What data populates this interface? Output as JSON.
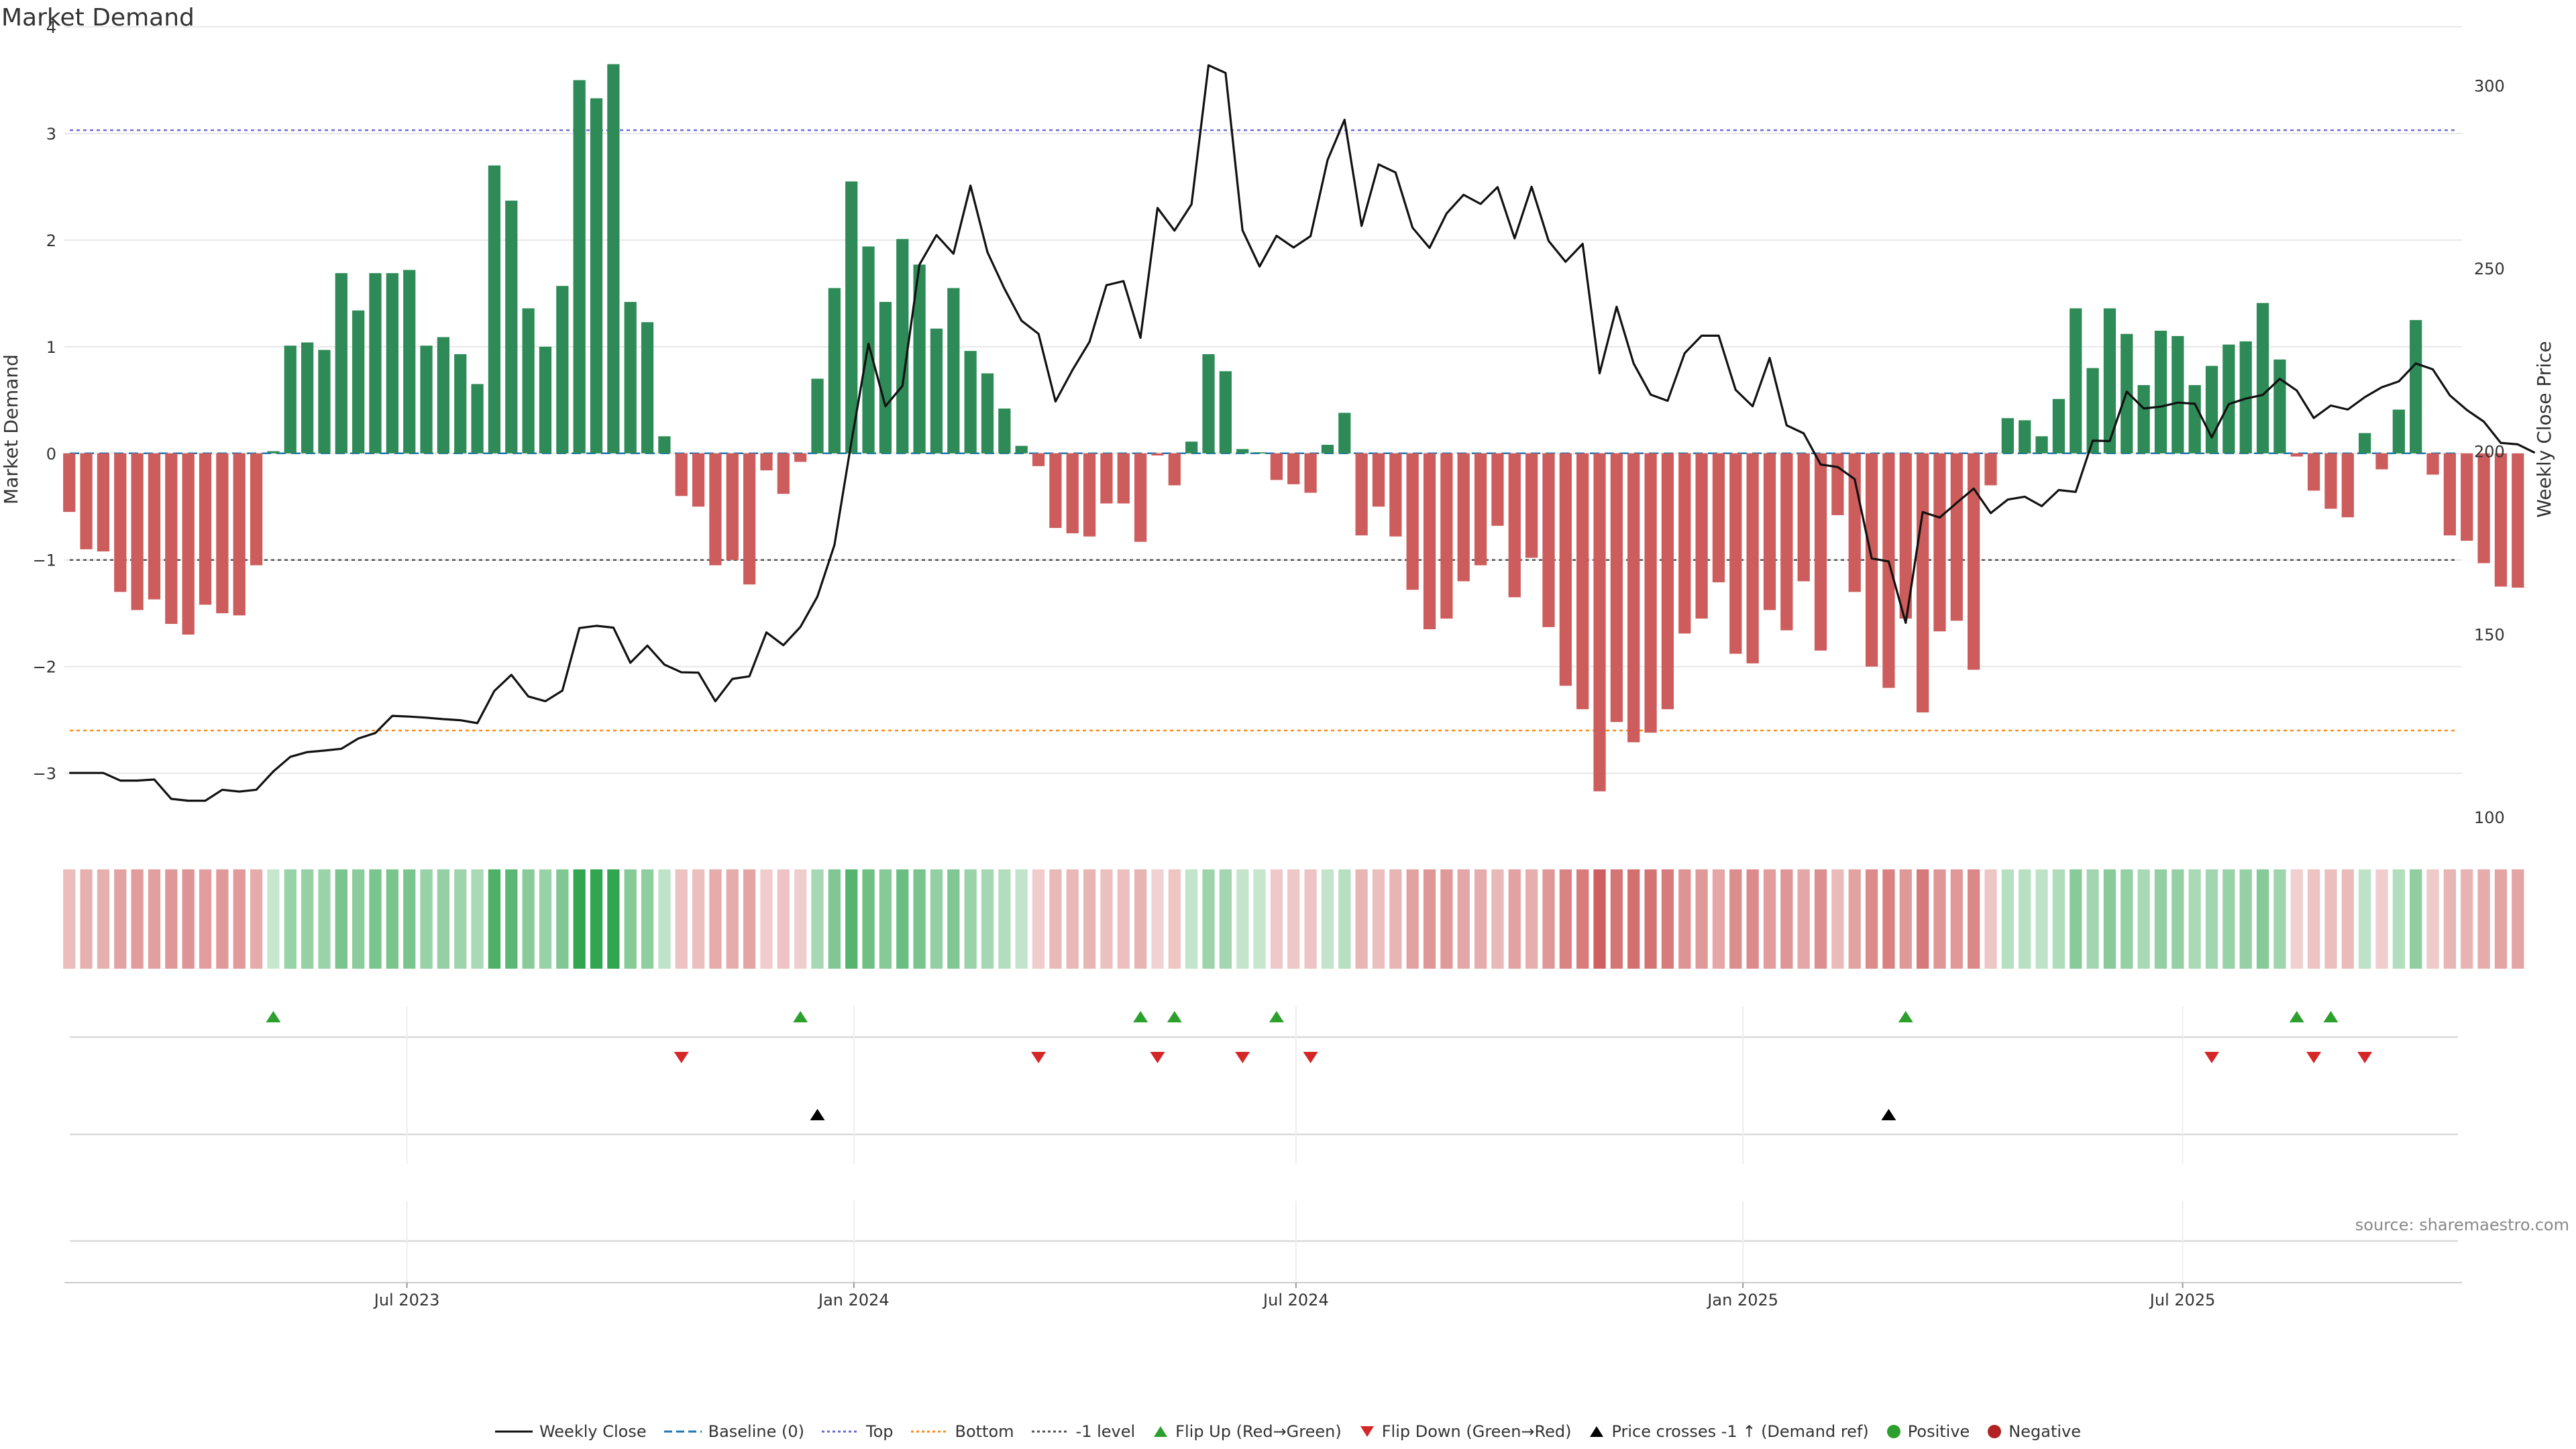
{
  "title": "Market Demand",
  "source": "source: sharemaestro.com",
  "colors": {
    "positive_bar": "#2e8b57",
    "negative_bar": "#cd5c5c",
    "price_line": "#111111",
    "baseline": "#1f77b4",
    "top_line": "#6b6bd6",
    "bottom_line": "#ff8c1a",
    "minus_one_line": "#555555",
    "flip_up": "#2ca02c",
    "flip_down": "#d62728",
    "price_cross": "#000000"
  },
  "legend": [
    {
      "key": "weekly_close",
      "label": "Weekly Close",
      "marker": "solid-line",
      "color": "#111111"
    },
    {
      "key": "baseline",
      "label": "Baseline (0)",
      "marker": "dashed-line",
      "color": "#1f77b4"
    },
    {
      "key": "top",
      "label": "Top",
      "marker": "dotted-line",
      "color": "#6b6bd6"
    },
    {
      "key": "bottom",
      "label": "Bottom",
      "marker": "dotted-line",
      "color": "#ff8c1a"
    },
    {
      "key": "minus_one",
      "label": "-1 level",
      "marker": "dotted-line",
      "color": "#555555"
    },
    {
      "key": "flip_up",
      "label": "Flip Up (Red→Green)",
      "marker": "triangle-up",
      "color": "#2ca02c"
    },
    {
      "key": "flip_down",
      "label": "Flip Down (Green→Red)",
      "marker": "triangle-down",
      "color": "#d62728"
    },
    {
      "key": "price_cross",
      "label": "Price crosses -1 ↑ (Demand ref)",
      "marker": "triangle-up",
      "color": "#000000"
    },
    {
      "key": "positive",
      "label": "Positive",
      "marker": "dot",
      "color": "#2ca02c"
    },
    {
      "key": "negative",
      "label": "Negative",
      "marker": "dot",
      "color": "#b22222"
    }
  ],
  "chart_data": {
    "type": "bar",
    "title": "Market Demand",
    "ylabel": "Market Demand",
    "y2label": "Weekly Close Price",
    "ylim": [
      -3.55,
      4
    ],
    "y2lim": [
      96,
      316
    ],
    "yticks": [
      4,
      3,
      2,
      1,
      0,
      -1,
      -2,
      -3
    ],
    "ytick_labels": [
      "4",
      "3",
      "2",
      "1",
      "0",
      "−1",
      "−2",
      "−3"
    ],
    "y2ticks": [
      300,
      250,
      200,
      150,
      100
    ],
    "y2tick_labels": [
      "300",
      "250",
      "200",
      "150",
      "100"
    ],
    "levels": {
      "top": 3.03,
      "bottom": -2.6,
      "minus_one": -1,
      "baseline": 0
    },
    "x_start": "2023-02-12",
    "x_step_days": 7,
    "x_range": [
      "2023-02-10",
      "2025-10-24"
    ],
    "x_ticks": [
      {
        "date": "2023-07-01",
        "label": "Jul 2023"
      },
      {
        "date": "2024-01-01",
        "label": "Jan 2024"
      },
      {
        "date": "2024-07-01",
        "label": "Jul 2024"
      },
      {
        "date": "2025-01-01",
        "label": "Jan 2025"
      },
      {
        "date": "2025-07-01",
        "label": "Jul 2025"
      }
    ],
    "demand": [
      -0.55,
      -0.9,
      -0.92,
      -1.3,
      -1.47,
      -1.37,
      -1.6,
      -1.7,
      -1.42,
      -1.5,
      -1.52,
      -1.05,
      0.02,
      1.01,
      1.04,
      0.97,
      1.69,
      1.34,
      1.69,
      1.69,
      1.72,
      1.01,
      1.09,
      0.93,
      0.65,
      2.7,
      2.37,
      1.36,
      1.0,
      1.57,
      3.5,
      3.33,
      3.65,
      1.42,
      1.23,
      0.16,
      -0.4,
      -0.5,
      -1.05,
      -1.0,
      -1.23,
      -0.16,
      -0.38,
      -0.08,
      0.7,
      1.55,
      2.55,
      1.94,
      1.42,
      2.01,
      1.77,
      1.17,
      1.55,
      0.96,
      0.75,
      0.42,
      0.07,
      -0.12,
      -0.7,
      -0.75,
      -0.78,
      -0.47,
      -0.47,
      -0.83,
      -0.02,
      -0.3,
      0.11,
      0.93,
      0.77,
      0.04,
      0.01,
      -0.25,
      -0.29,
      -0.37,
      0.08,
      0.38,
      -0.77,
      -0.5,
      -0.78,
      -1.28,
      -1.65,
      -1.55,
      -1.2,
      -1.05,
      -0.68,
      -1.35,
      -0.98,
      -1.63,
      -2.18,
      -2.4,
      -3.17,
      -2.52,
      -2.71,
      -2.62,
      -2.4,
      -1.69,
      -1.55,
      -1.21,
      -1.88,
      -1.97,
      -1.47,
      -1.66,
      -1.2,
      -1.85,
      -0.58,
      -1.3,
      -2.0,
      -2.2,
      -1.55,
      -2.43,
      -1.67,
      -1.57,
      -2.03,
      -0.3,
      0.33,
      0.31,
      0.16,
      0.51,
      1.36,
      0.8,
      1.36,
      1.12,
      0.64,
      1.15,
      1.1,
      0.64,
      0.82,
      1.02,
      1.05,
      1.41,
      0.88,
      -0.03,
      -0.35,
      -0.52,
      -0.6,
      0.19,
      -0.15,
      0.41,
      1.25,
      -0.2,
      -0.77,
      -0.82,
      -1.03,
      -1.25,
      -1.26
    ],
    "close": [
      112.1,
      112.1,
      112.1,
      110.0,
      110.0,
      110.3,
      105.0,
      104.5,
      104.5,
      107.5,
      107.0,
      107.5,
      112.5,
      116.5,
      117.8,
      118.2,
      118.7,
      121.5,
      123.0,
      127.7,
      127.5,
      127.2,
      126.8,
      126.5,
      125.7,
      134.5,
      138.9,
      133.0,
      131.7,
      134.6,
      151.7,
      152.3,
      151.8,
      142.2,
      146.9,
      141.7,
      139.6,
      139.5,
      131.7,
      137.8,
      138.5,
      150.5,
      147.0,
      152.0,
      160.3,
      174.4,
      202.6,
      229.4,
      212.3,
      217.9,
      251.0,
      259.1,
      254.0,
      272.6,
      254.4,
      244.4,
      235.7,
      232.1,
      213.6,
      222.2,
      229.9,
      245.4,
      246.5,
      231.0,
      266.5,
      260.3,
      267.5,
      305.5,
      303.4,
      260.4,
      250.5,
      258.9,
      255.7,
      258.8,
      279.6,
      290.6,
      261.6,
      278.4,
      276.2,
      261.1,
      255.6,
      265.0,
      270.1,
      267.6,
      272.2,
      258.2,
      272.3,
      257.5,
      251.8,
      256.7,
      221.3,
      239.5,
      224.0,
      215.5,
      213.8,
      226.8,
      231.6,
      231.6,
      216.8,
      212.3,
      225.5,
      207.1,
      204.9,
      196.4,
      195.7,
      192.4,
      170.7,
      169.9,
      153.1,
      183.4,
      181.9,
      185.9,
      189.8,
      183.1,
      186.8,
      187.6,
      185.0,
      189.4,
      188.9,
      202.9,
      202.8,
      216.3,
      211.7,
      212.2,
      213.3,
      213.0,
      203.8,
      212.9,
      214.4,
      215.4,
      219.8,
      216.6,
      209.1,
      212.5,
      211.4,
      214.8,
      217.5,
      219.1,
      224.0,
      222.4,
      215.3,
      211.3,
      208.1,
      202.3,
      201.9,
      199.6
    ],
    "flip_up_dates": [
      "2023-05-07",
      "2023-12-10",
      "2024-04-28",
      "2024-05-12",
      "2024-06-23",
      "2025-03-09",
      "2025-08-17",
      "2025-08-31"
    ],
    "flip_down_dates": [
      "2023-10-22",
      "2024-03-17",
      "2024-05-05",
      "2024-06-09",
      "2024-07-07",
      "2025-07-13",
      "2025-08-24",
      "2025-09-14"
    ],
    "price_cross_dates": [
      "2023-12-17",
      "2025-03-02"
    ]
  }
}
